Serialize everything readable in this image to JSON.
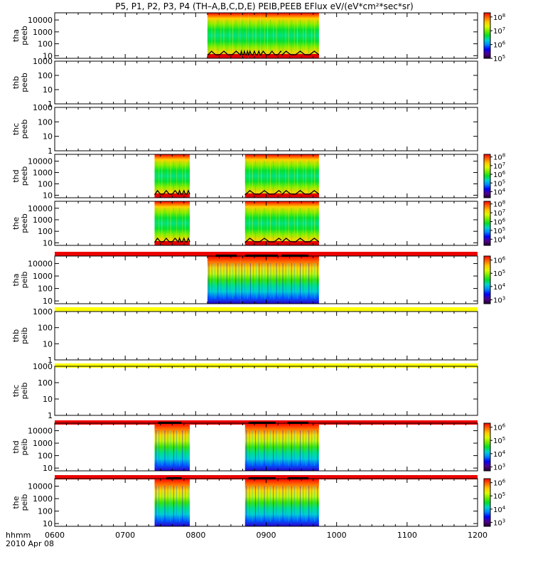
{
  "title": "P5, P1, P2, P3, P4 (TH–A,B,C,D,E) PEIB,PEEB EFlux eV/(eV*cm²*sec*sr)",
  "time_axis": {
    "label_line1": "hhmm",
    "label_line2": "2010 Apr 08",
    "ticks": [
      "0600",
      "0700",
      "0800",
      "0900",
      "1000",
      "1100",
      "1200"
    ]
  },
  "colors": {
    "red_bar": "#ee0000",
    "yellow_bar": "#ffff00",
    "black": "#000000"
  },
  "chart_data": [
    {
      "type": "heatmap",
      "probe": "tha",
      "instrument": "peeb",
      "ylabel": [
        "tha",
        "peeb"
      ],
      "yscale": "log",
      "ylim": [
        6,
        40000
      ],
      "yticks": [
        10,
        100,
        1000,
        10000
      ],
      "colorbar": {
        "label_exponents": [
          5,
          6,
          7,
          8
        ],
        "min_exp": 5,
        "max_exp": 8.3
      },
      "status_bar_above": null,
      "data_intervals": [
        [
          "0810",
          "0838"
        ],
        [
          "0838",
          "0845"
        ],
        [
          "0845",
          "0855"
        ],
        [
          "0855",
          "0875"
        ],
        [
          "0913",
          "0945"
        ]
      ],
      "black_bars": []
    },
    {
      "type": "heatmap",
      "probe": "thb",
      "instrument": "peeb",
      "ylabel": [
        "thb",
        "peeb"
      ],
      "yscale": "log",
      "ylim": [
        1,
        1000
      ],
      "yticks": [
        1,
        10,
        100,
        1000
      ],
      "colorbar": null,
      "status_bar_above": null,
      "data_intervals": [],
      "black_bars": []
    },
    {
      "type": "heatmap",
      "probe": "thc",
      "instrument": "peeb",
      "ylabel": [
        "thc",
        "peeb"
      ],
      "yscale": "log",
      "ylim": [
        1,
        1000
      ],
      "yticks": [
        1,
        10,
        100,
        1000
      ],
      "colorbar": null,
      "status_bar_above": null,
      "data_intervals": [],
      "black_bars": []
    },
    {
      "type": "heatmap",
      "probe": "thd",
      "instrument": "peeb",
      "ylabel": [
        "thd",
        "peeb"
      ],
      "yscale": "log",
      "ylim": [
        6,
        40000
      ],
      "yticks": [
        10,
        100,
        1000,
        10000
      ],
      "colorbar": {
        "label_exponents": [
          4,
          5,
          6,
          7,
          8
        ],
        "min_exp": 3.3,
        "max_exp": 8.3
      },
      "status_bar_above": null,
      "data_intervals": [
        [
          "0725",
          "0745"
        ],
        [
          "0745",
          "0755"
        ],
        [
          "0842",
          "0875"
        ],
        [
          "0913",
          "0945"
        ]
      ],
      "black_bars": []
    },
    {
      "type": "heatmap",
      "probe": "the",
      "instrument": "peeb",
      "ylabel": [
        "the",
        "peeb"
      ],
      "yscale": "log",
      "ylim": [
        6,
        40000
      ],
      "yticks": [
        10,
        100,
        1000,
        10000
      ],
      "colorbar": {
        "label_exponents": [
          4,
          5,
          6,
          7,
          8
        ],
        "min_exp": 3.3,
        "max_exp": 8.3
      },
      "status_bar_above": null,
      "data_intervals": [
        [
          "0725",
          "0745"
        ],
        [
          "0745",
          "0755"
        ],
        [
          "0842",
          "0875"
        ],
        [
          "0913",
          "0945"
        ]
      ],
      "black_bars": []
    },
    {
      "type": "heatmap",
      "probe": "tha",
      "instrument": "peib",
      "ylabel": [
        "tha",
        "peib"
      ],
      "yscale": "log",
      "ylim": [
        6,
        40000
      ],
      "yticks": [
        10,
        100,
        1000,
        10000
      ],
      "colorbar": {
        "label_exponents": [
          3,
          4,
          5,
          6
        ],
        "min_exp": 2.7,
        "max_exp": 6.3
      },
      "status_bar_above": "red",
      "data_intervals": [
        [
          "0810",
          "0838"
        ],
        [
          "0838",
          "0875"
        ],
        [
          "0913",
          "0945"
        ]
      ],
      "black_bars": [
        [
          "0817",
          "0835"
        ],
        [
          "0842",
          "0870"
        ],
        [
          "0913",
          "0936"
        ]
      ]
    },
    {
      "type": "heatmap",
      "probe": "thb",
      "instrument": "peib",
      "ylabel": [
        "thb",
        "peib"
      ],
      "yscale": "log",
      "ylim": [
        1,
        1000
      ],
      "yticks": [
        1,
        10,
        100,
        1000
      ],
      "colorbar": null,
      "status_bar_above": "yellow",
      "data_intervals": [],
      "black_bars": []
    },
    {
      "type": "heatmap",
      "probe": "thc",
      "instrument": "peib",
      "ylabel": [
        "thc",
        "peib"
      ],
      "yscale": "log",
      "ylim": [
        1,
        1000
      ],
      "yticks": [
        1,
        10,
        100,
        1000
      ],
      "colorbar": null,
      "status_bar_above": "yellow",
      "data_intervals": [],
      "black_bars": []
    },
    {
      "type": "heatmap",
      "probe": "thd",
      "instrument": "peib",
      "ylabel": [
        "thd",
        "peib"
      ],
      "yscale": "log",
      "ylim": [
        6,
        40000
      ],
      "yticks": [
        10,
        100,
        1000,
        10000
      ],
      "colorbar": {
        "label_exponents": [
          3,
          4,
          5,
          6
        ],
        "min_exp": 2.7,
        "max_exp": 6.3
      },
      "status_bar_above": "red",
      "data_intervals": [
        [
          "0725",
          "0755"
        ],
        [
          "0842",
          "0875"
        ],
        [
          "0913",
          "0945"
        ]
      ],
      "black_bars": [
        [
          "0728",
          "0748"
        ],
        [
          "0845",
          "0868"
        ],
        [
          "0918",
          "0936"
        ]
      ]
    },
    {
      "type": "heatmap",
      "probe": "the",
      "instrument": "peib",
      "ylabel": [
        "the",
        "peib"
      ],
      "yscale": "log",
      "ylim": [
        6,
        40000
      ],
      "yticks": [
        10,
        100,
        1000,
        10000
      ],
      "colorbar": {
        "label_exponents": [
          3,
          4,
          5,
          6
        ],
        "min_exp": 2.7,
        "max_exp": 6.3
      },
      "status_bar_above": "red",
      "data_intervals": [
        [
          "0725",
          "0755"
        ],
        [
          "0842",
          "0875"
        ],
        [
          "0913",
          "0945"
        ]
      ],
      "black_bars": [
        [
          "0735",
          "0748"
        ],
        [
          "0845",
          "0868"
        ],
        [
          "0918",
          "0936"
        ]
      ]
    }
  ]
}
